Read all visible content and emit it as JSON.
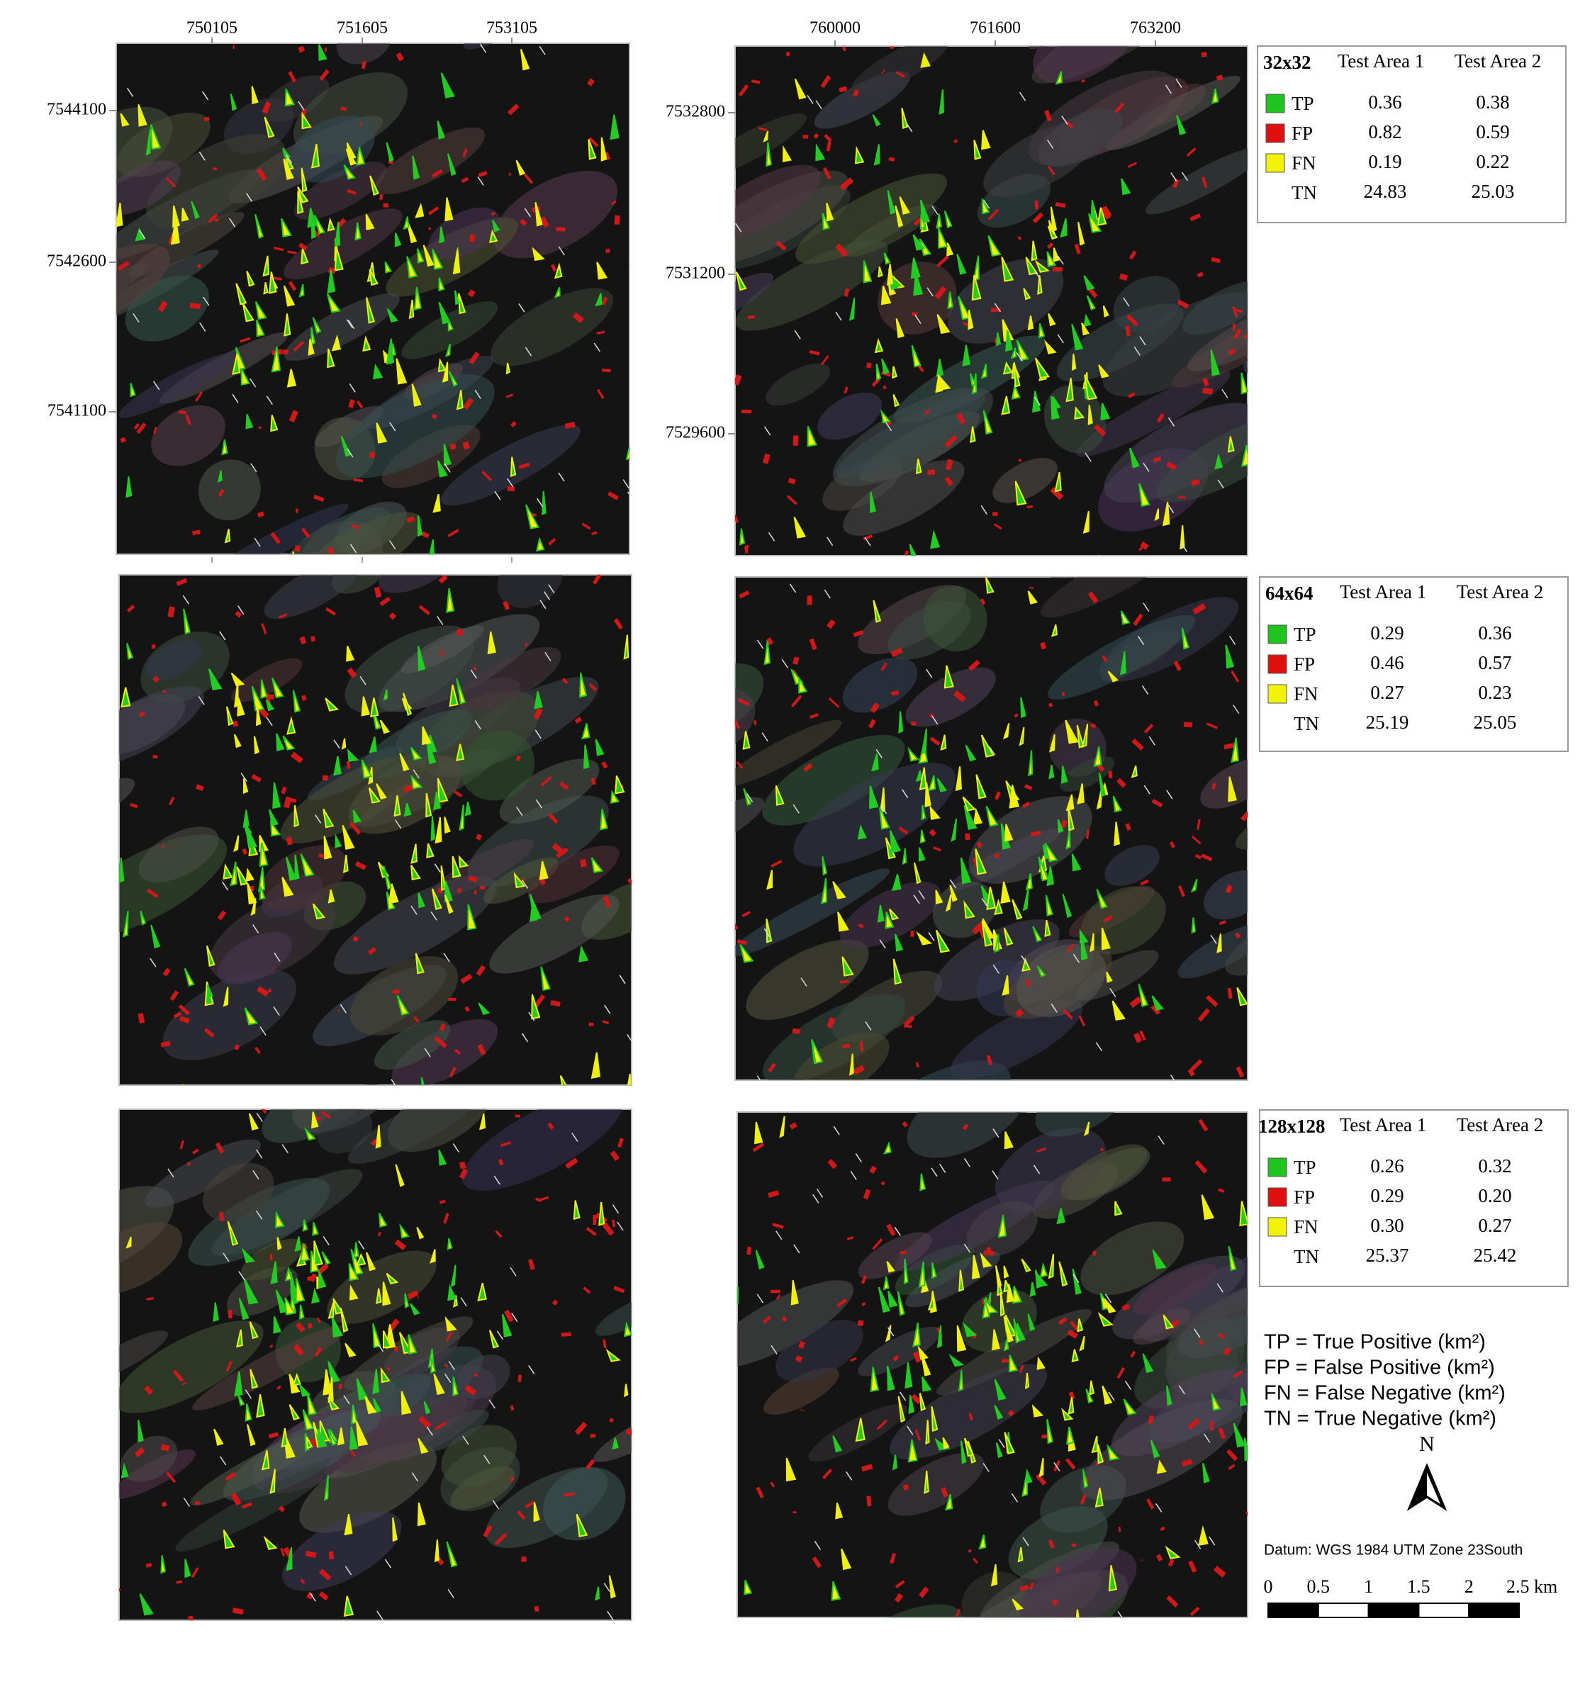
{
  "maps": {
    "left": {
      "x_ticks": [
        750105,
        751605,
        753105
      ],
      "y_ticks": [
        7544100,
        7542600,
        7541100
      ]
    },
    "right": {
      "x_ticks": [
        760000,
        761600,
        763200
      ],
      "y_ticks": [
        7532800,
        7531200,
        7529600
      ]
    }
  },
  "tables": [
    {
      "title": "32x32",
      "columns": [
        "Test Area 1",
        "Test Area 2"
      ],
      "rows": [
        {
          "label": "TP",
          "color": "#1fc41f",
          "values": [
            "0.36",
            "0.38"
          ]
        },
        {
          "label": "FP",
          "color": "#e01010",
          "values": [
            "0.82",
            "0.59"
          ]
        },
        {
          "label": "FN",
          "color": "#f2f20a",
          "values": [
            "0.19",
            "0.22"
          ]
        },
        {
          "label": "TN",
          "values": [
            "24.83",
            "25.03"
          ]
        }
      ]
    },
    {
      "title": "64x64",
      "columns": [
        "Test Area 1",
        "Test Area 2"
      ],
      "rows": [
        {
          "label": "TP",
          "color": "#1fc41f",
          "values": [
            "0.29",
            "0.36"
          ]
        },
        {
          "label": "FP",
          "color": "#e01010",
          "values": [
            "0.46",
            "0.57"
          ]
        },
        {
          "label": "FN",
          "color": "#f2f20a",
          "values": [
            "0.27",
            "0.23"
          ]
        },
        {
          "label": "TN",
          "values": [
            "25.19",
            "25.05"
          ]
        }
      ]
    },
    {
      "title": "128x128",
      "columns": [
        "Test Area 1",
        "Test Area 2"
      ],
      "rows": [
        {
          "label": "TP",
          "color": "#1fc41f",
          "values": [
            "0.26",
            "0.32"
          ]
        },
        {
          "label": "FP",
          "color": "#e01010",
          "values": [
            "0.29",
            "0.20"
          ]
        },
        {
          "label": "FN",
          "color": "#f2f20a",
          "values": [
            "0.30",
            "0.27"
          ]
        },
        {
          "label": "TN",
          "values": [
            "25.37",
            "25.42"
          ]
        }
      ]
    }
  ],
  "definitions": [
    "TP = True Positive (km²)",
    "FP = False Positive (km²)",
    "FN = False Negative (km²)",
    "TN = True Negative (km²)"
  ],
  "north": "N",
  "datum": "Datum: WGS 1984 UTM Zone 23South",
  "scale_bar": {
    "labels": [
      "0",
      "0.5",
      "1",
      "1.5",
      "2",
      "2.5 km"
    ]
  }
}
